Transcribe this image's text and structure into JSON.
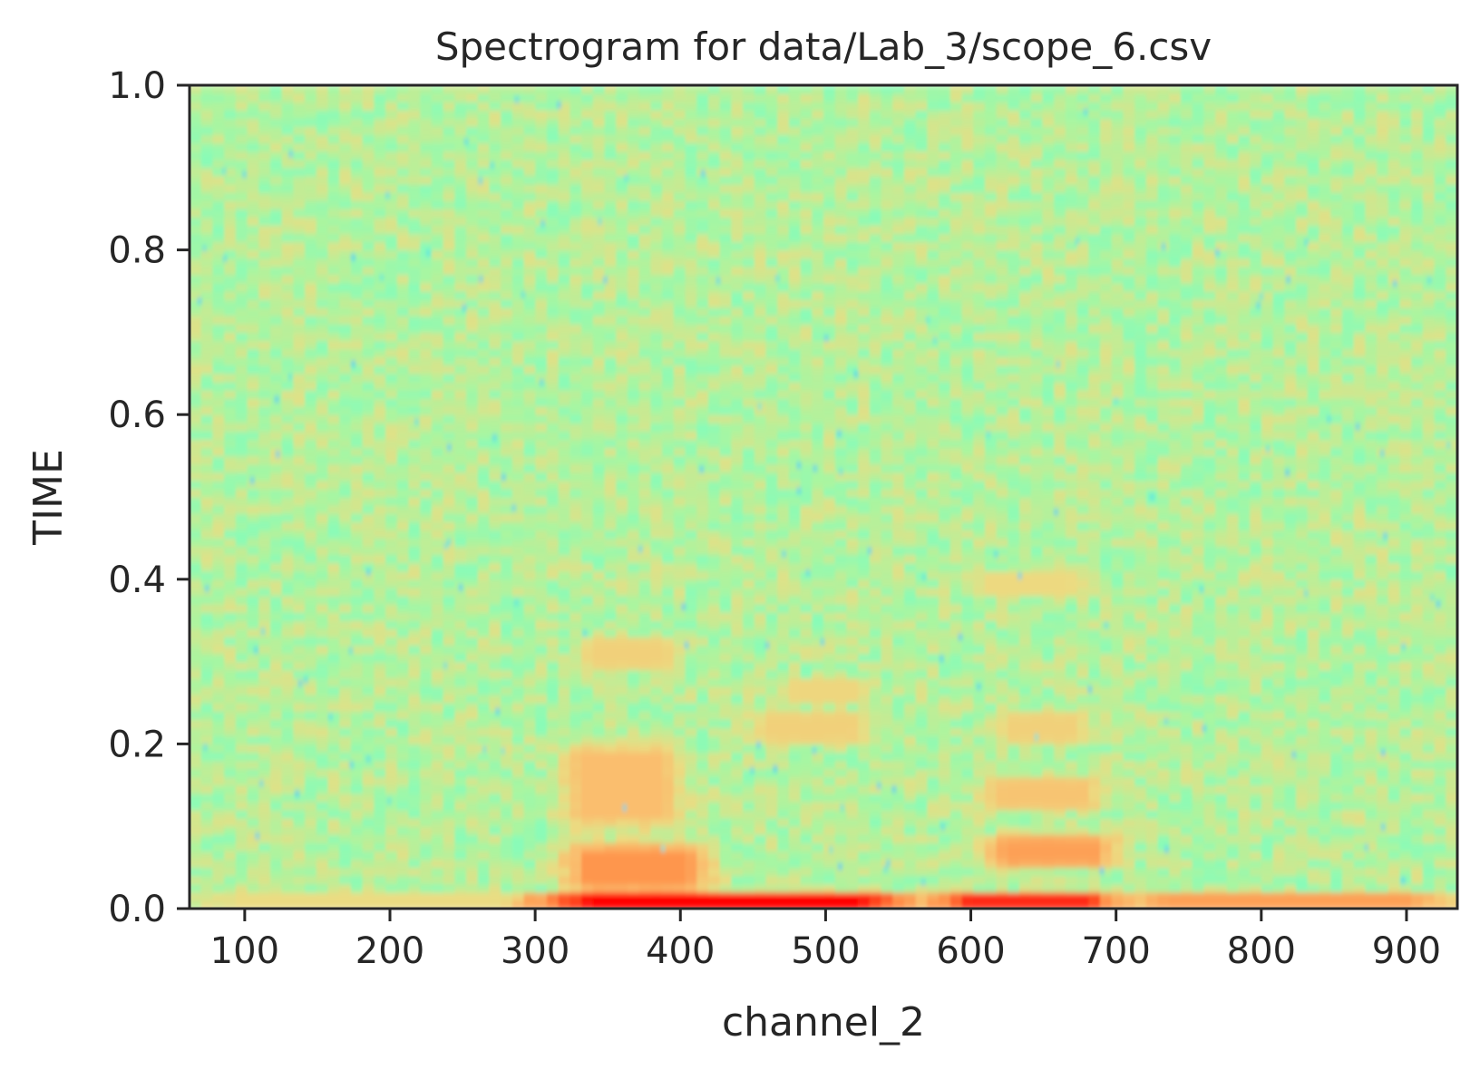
{
  "chart_data": {
    "type": "heatmap",
    "title": "Spectrogram for data/Lab_3/scope_6.csv",
    "xlabel": "channel_2",
    "ylabel": "TIME",
    "xlim": [
      62,
      935
    ],
    "ylim": [
      0.0,
      1.0
    ],
    "x_ticks": [
      100,
      200,
      300,
      400,
      500,
      600,
      700,
      800,
      900
    ],
    "y_ticks": [
      0.0,
      0.2,
      0.4,
      0.6,
      0.8,
      1.0
    ],
    "x_tick_labels": [
      "100",
      "200",
      "300",
      "400",
      "500",
      "600",
      "700",
      "800",
      "900"
    ],
    "y_tick_labels": [
      "0.0",
      "0.2",
      "0.4",
      "0.6",
      "0.8",
      "1.0"
    ],
    "colormap": "rainbow",
    "grid": false,
    "legend": "none",
    "intensity_regions": [
      {
        "x": [
          300,
          560
        ],
        "y": [
          0.0,
          0.02
        ],
        "level": 1.0
      },
      {
        "x": [
          580,
          700
        ],
        "y": [
          0.0,
          0.02
        ],
        "level": 0.95
      },
      {
        "x": [
          700,
          935
        ],
        "y": [
          0.0,
          0.02
        ],
        "level": 0.78
      },
      {
        "x": [
          62,
          300
        ],
        "y": [
          0.0,
          0.02
        ],
        "level": 0.62
      },
      {
        "x": [
          320,
          420
        ],
        "y": [
          0.02,
          0.08
        ],
        "level": 0.8
      },
      {
        "x": [
          610,
          700
        ],
        "y": [
          0.05,
          0.09
        ],
        "level": 0.78
      },
      {
        "x": [
          320,
          400
        ],
        "y": [
          0.1,
          0.2
        ],
        "level": 0.72
      },
      {
        "x": [
          610,
          690
        ],
        "y": [
          0.12,
          0.16
        ],
        "level": 0.7
      },
      {
        "x": [
          450,
          530
        ],
        "y": [
          0.2,
          0.24
        ],
        "level": 0.66
      },
      {
        "x": [
          620,
          680
        ],
        "y": [
          0.2,
          0.24
        ],
        "level": 0.66
      },
      {
        "x": [
          330,
          400
        ],
        "y": [
          0.29,
          0.33
        ],
        "level": 0.66
      },
      {
        "x": [
          470,
          530
        ],
        "y": [
          0.25,
          0.28
        ],
        "level": 0.64
      },
      {
        "x": [
          600,
          680
        ],
        "y": [
          0.38,
          0.41
        ],
        "level": 0.63
      }
    ]
  }
}
